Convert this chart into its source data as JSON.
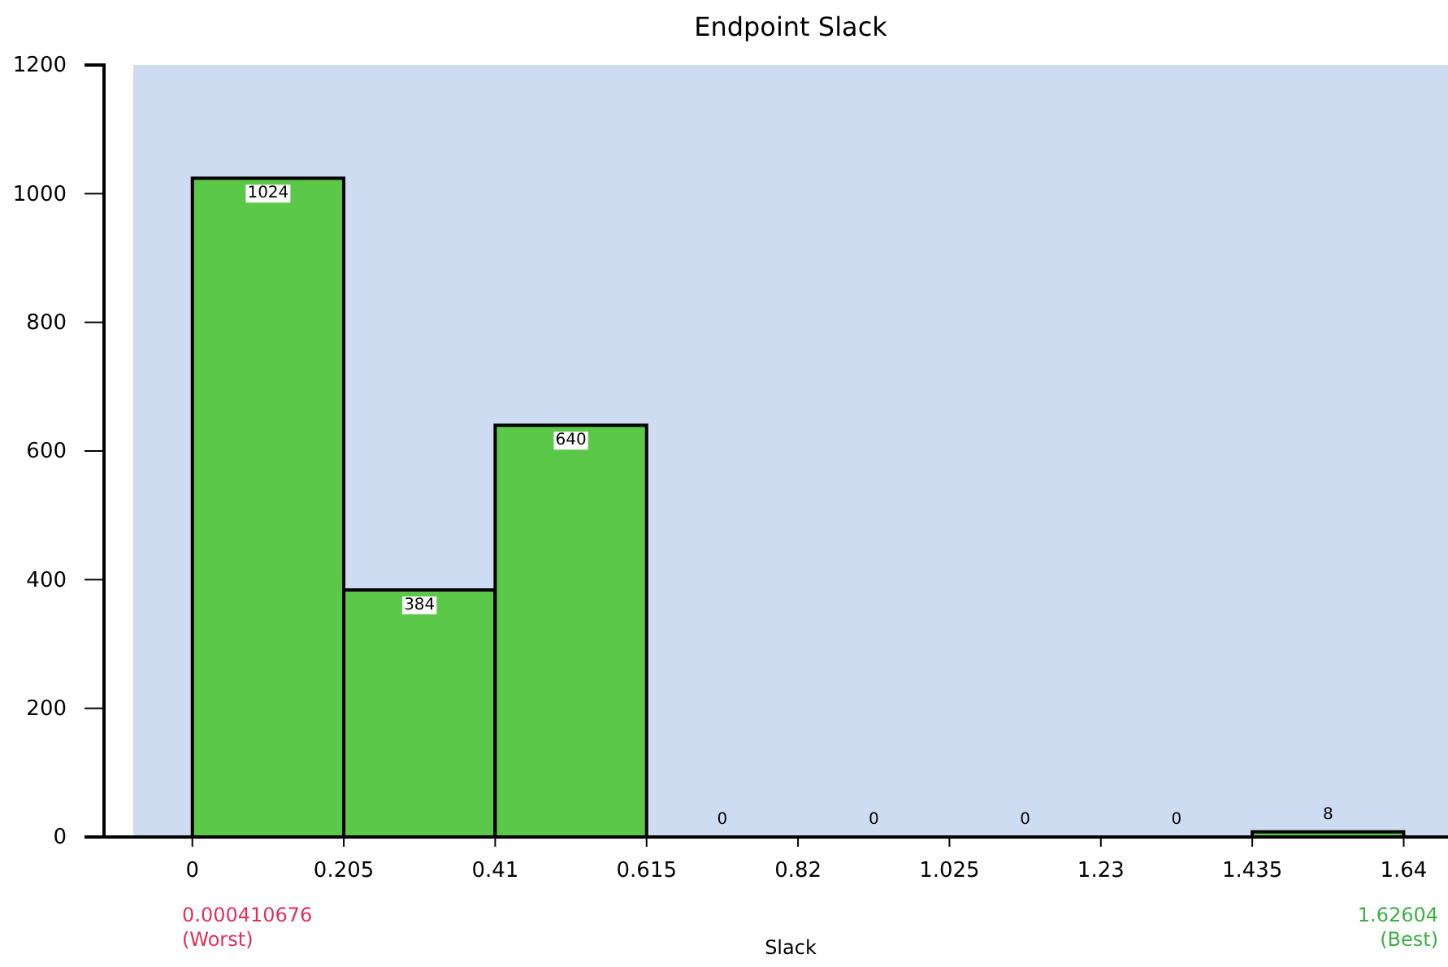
{
  "chart_data": {
    "type": "histogram",
    "title": "Endpoint Slack",
    "xlabel": "Slack",
    "bins": [
      0,
      0.205,
      0.41,
      0.615,
      0.82,
      1.025,
      1.23,
      1.435,
      1.64
    ],
    "values": [
      1024,
      384,
      640,
      0,
      0,
      0,
      0,
      8
    ],
    "color": "#5cc84a",
    "xlim": [
      -0.08,
      1.7
    ],
    "xticks": [
      0,
      0.205,
      0.41,
      0.615,
      0.82,
      1.025,
      1.23,
      1.435,
      1.64
    ],
    "ylim": [
      0,
      1200
    ],
    "yticks": [
      0,
      200,
      400,
      600,
      800,
      1000,
      1200
    ],
    "data_labels": true,
    "grid": false,
    "annotations": [
      "0.000410676",
      "(Worst)",
      "1.62604",
      "(Best)"
    ]
  }
}
